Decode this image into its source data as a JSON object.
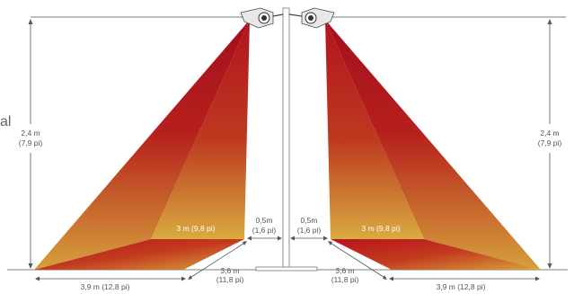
{
  "left": {
    "height_metric": "2,4 m",
    "height_imperial": "(7,9 pi)",
    "inner_width": "3 m (9,8 pi)",
    "offset_metric": "0,5m",
    "offset_imperial": "(1,6 pi)",
    "depth_metric": "3,6 m",
    "depth_imperial": "(11,8 pi)",
    "base_width": "3,9 m (12,8 pi)"
  },
  "right": {
    "height_metric": "2,4 m",
    "height_imperial": "(7,9 pi)",
    "inner_width": "3 m (9,8 pi)",
    "offset_metric": "0,5m",
    "offset_imperial": "(1,6 pi)",
    "depth_metric": "3,6 m",
    "depth_imperial": "(11,8 pi)",
    "base_width": "3,9 m (12,8 pi)"
  },
  "edge_fragment": "al",
  "colors": {
    "heat_top": "#a8101c",
    "heat_mid": "#c0301c",
    "heat_bottom": "#d8a23c",
    "line": "#555555",
    "pole": "#8a8a8a"
  }
}
